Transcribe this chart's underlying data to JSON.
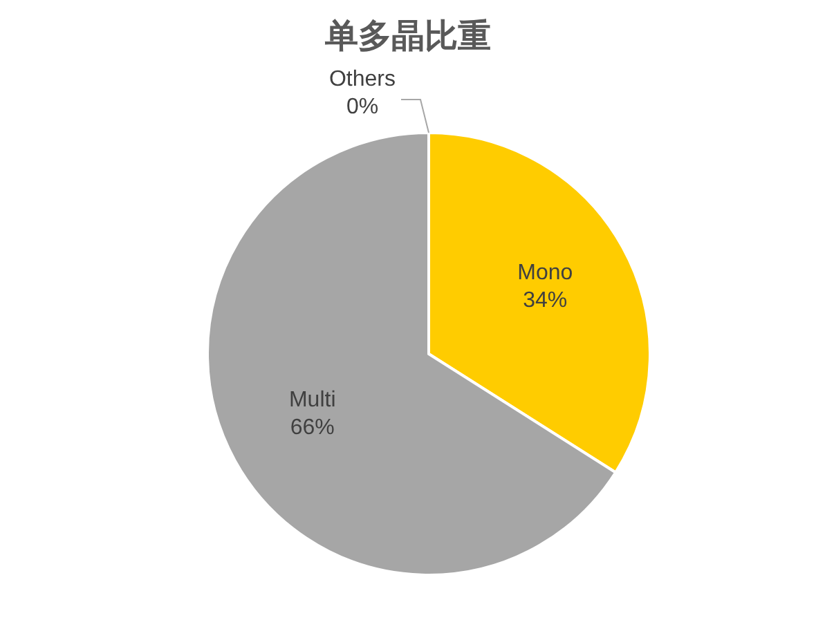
{
  "chart_data": {
    "type": "pie",
    "title": "单多晶比重",
    "categories": [
      "Mono",
      "Multi",
      "Others"
    ],
    "values": [
      34,
      66,
      0
    ],
    "value_labels": [
      "34%",
      "66%",
      "0%"
    ],
    "colors": [
      "#ffcc00",
      "#a6a6a6",
      "#5b9bd5"
    ],
    "legend": false
  }
}
